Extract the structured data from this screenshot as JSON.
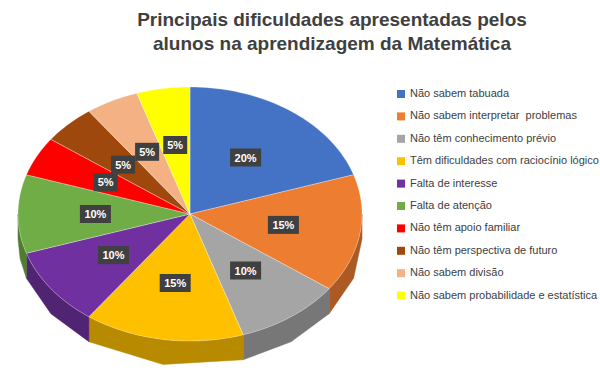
{
  "chart_data": {
    "type": "pie",
    "title": "Principais dificuldades apresentadas pelos alunos na aprendizagem da Matemática",
    "categories": [
      "Não sabem tabuada",
      "Não sabem interpretar  problemas",
      "Não têm conhecimento prévio",
      "Têm dificuldades com raciocínio lógico",
      "Falta de interesse",
      "Falta de atenção",
      "Não têm apoio familiar",
      "Não têm perspectiva de futuro",
      "Não sabem divisão",
      "Não sabem probabilidade e estatística"
    ],
    "values": [
      20,
      15,
      10,
      15,
      10,
      10,
      5,
      5,
      5,
      5
    ],
    "value_labels": [
      "20%",
      "15%",
      "10%",
      "15%",
      "10%",
      "10%",
      "5%",
      "5%",
      "5%",
      "5%"
    ],
    "colors": [
      "#4472c4",
      "#ed7d31",
      "#a5a5a5",
      "#ffc000",
      "#7030a0",
      "#70ad47",
      "#ff0000",
      "#9e480e",
      "#f4b183",
      "#ffff00"
    ],
    "data_labels": true,
    "legend": "right"
  }
}
